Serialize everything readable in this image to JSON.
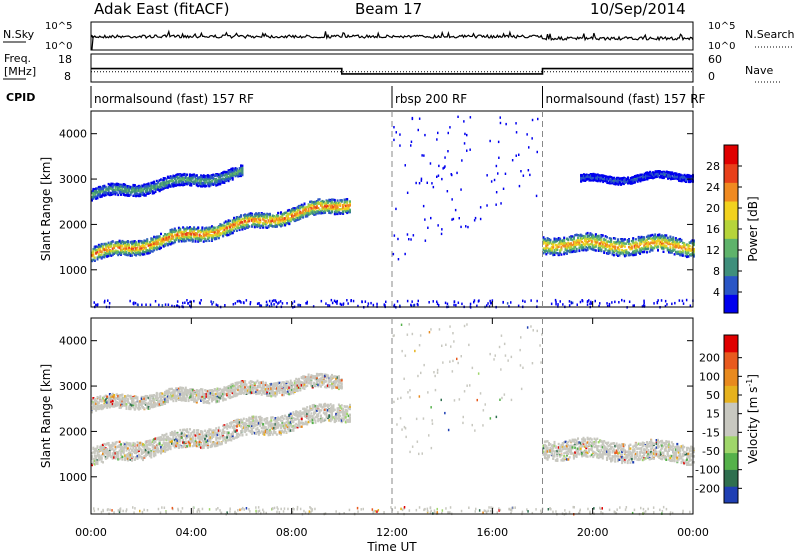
{
  "header": {
    "title": "Adak East (fitACF)",
    "beam": "Beam 17",
    "date": "10/Sep/2014"
  },
  "noise_panel": {
    "left_label": "N.Sky",
    "right_label": "N.Search",
    "left_ticks": [
      "10^5",
      "10^0"
    ],
    "right_ticks": [
      "10^5",
      "10^0"
    ]
  },
  "freq_panel": {
    "left_label_1": "Freq.",
    "left_label_2": "[MHz]",
    "right_label": "Nave",
    "left_ticks": [
      "18",
      "8"
    ],
    "right_ticks": [
      "60",
      "0"
    ],
    "freq_steps": [
      {
        "from_hour": 0,
        "to_hour": 10,
        "freq_mhz": 12.8
      },
      {
        "from_hour": 10,
        "to_hour": 18,
        "freq_mhz": 10.9
      },
      {
        "from_hour": 18,
        "to_hour": 24,
        "freq_mhz": 12.8
      }
    ],
    "nave_level": 22
  },
  "cpid": {
    "label": "CPID",
    "segments": [
      {
        "name": "normalsound (fast) 157 RF",
        "start_hour": 0,
        "end_hour": 12
      },
      {
        "name": "rbsp 200 RF",
        "start_hour": 12,
        "end_hour": 18
      },
      {
        "name": "normalsound (fast) 157 RF",
        "start_hour": 18,
        "end_hour": 24
      }
    ]
  },
  "colors": {
    "power": [
      "#0000ee",
      "#2a56c6",
      "#3f8f7c",
      "#5fb36b",
      "#b6d43a",
      "#f2d21e",
      "#f08a20",
      "#e8401a",
      "#e00000"
    ],
    "velocity": [
      "#1f3fb3",
      "#2f6f4f",
      "#55b14a",
      "#9fd66a",
      "#c8c8c0",
      "#c8c8c0",
      "#e6b21e",
      "#e88a1e",
      "#e85a1e",
      "#e00000"
    ]
  },
  "chart_data": [
    {
      "type": "heatmap",
      "panel": "power",
      "xlabel": "",
      "ylabel": "Slant Range [km]",
      "x_unit": "hours UT",
      "xlim": [
        0,
        24
      ],
      "ylim": [
        180,
        4500
      ],
      "yticks": [
        "1000",
        "2000",
        "3000",
        "4000"
      ],
      "colorbar": {
        "label": "Power [dB]",
        "ticks": [
          "4",
          "8",
          "12",
          "16",
          "20",
          "24",
          "28"
        ],
        "range": [
          0,
          32
        ]
      },
      "features": [
        {
          "name": "lower band",
          "start_hour": 0,
          "end_hour": 10.3,
          "range_start_km": 1350,
          "range_end_km": 2500,
          "width_km": 320,
          "peak_db": 28
        },
        {
          "name": "upper band",
          "start_hour": 0,
          "end_hour": 6,
          "range_start_km": 2680,
          "range_end_km": 3150,
          "width_km": 250,
          "peak_db": 14
        },
        {
          "name": "late band",
          "start_hour": 18,
          "end_hour": 24,
          "range_start_km": 1600,
          "range_end_km": 1550,
          "width_km": 380,
          "peak_db": 26
        },
        {
          "name": "late upper",
          "start_hour": 19.5,
          "end_hour": 24,
          "range_start_km": 3000,
          "range_end_km": 3100,
          "width_km": 150,
          "peak_db": 8
        }
      ]
    },
    {
      "type": "heatmap",
      "panel": "velocity",
      "xlabel": "Time UT",
      "ylabel": "Slant Range [km]",
      "x_unit": "hours UT",
      "xlim": [
        0,
        24
      ],
      "ylim": [
        180,
        4500
      ],
      "xticks": [
        "00:00",
        "04:00",
        "08:00",
        "12:00",
        "16:00",
        "20:00",
        "00:00"
      ],
      "yticks": [
        "1000",
        "2000",
        "3000",
        "4000"
      ],
      "colorbar": {
        "label": "Velocity [m s",
        "label_superscript": "-1",
        "label_close": "]",
        "ticks": [
          "200",
          "100",
          "50",
          "15",
          "-15",
          "-50",
          "-100",
          "-200"
        ],
        "range": [
          -250,
          250
        ]
      },
      "features": [
        {
          "name": "lower band",
          "start_hour": 0,
          "end_hour": 10.3,
          "range_start_km": 1450,
          "range_end_km": 2500,
          "width_km": 400,
          "velocity": -10
        },
        {
          "name": "upper band",
          "start_hour": 0,
          "end_hour": 10,
          "range_start_km": 2600,
          "range_end_km": 3150,
          "width_km": 300,
          "velocity": 5
        },
        {
          "name": "late band",
          "start_hour": 18,
          "end_hour": 24,
          "range_start_km": 1650,
          "range_end_km": 1550,
          "width_km": 420,
          "velocity": 0
        }
      ]
    }
  ]
}
